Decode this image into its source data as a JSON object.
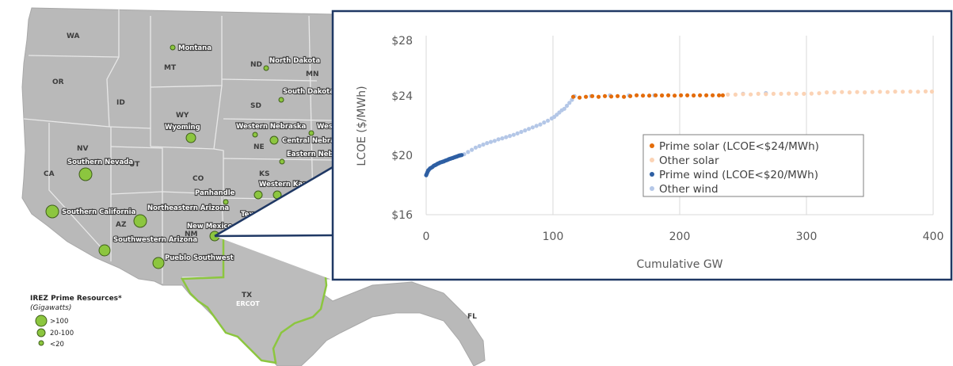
{
  "map": {
    "states": [
      {
        "id": "WA",
        "label": "WA"
      },
      {
        "id": "OR",
        "label": "OR"
      },
      {
        "id": "ID",
        "label": "ID"
      },
      {
        "id": "MT",
        "label": "MT"
      },
      {
        "id": "WY",
        "label": "WY"
      },
      {
        "id": "NV",
        "label": "NV"
      },
      {
        "id": "UT",
        "label": "UT"
      },
      {
        "id": "CA",
        "label": "CA"
      },
      {
        "id": "CO",
        "label": "CO"
      },
      {
        "id": "AZ",
        "label": "AZ"
      },
      {
        "id": "NM",
        "label": "NM"
      },
      {
        "id": "ND",
        "label": "ND"
      },
      {
        "id": "SD",
        "label": "SD"
      },
      {
        "id": "NE",
        "label": "NE"
      },
      {
        "id": "KS",
        "label": "KS"
      },
      {
        "id": "MN",
        "label": "MN"
      },
      {
        "id": "TX",
        "label": "TX"
      },
      {
        "id": "ERCOT",
        "label": "ERCOT"
      },
      {
        "id": "FL",
        "label": "FL"
      }
    ],
    "regions": [
      {
        "id": "montana",
        "label": "Montana",
        "size": "small"
      },
      {
        "id": "north-dakota",
        "label": "North Dakota",
        "size": "small"
      },
      {
        "id": "south-dakota",
        "label": "South Dakota",
        "size": "small"
      },
      {
        "id": "wyoming",
        "label": "Wyoming",
        "size": "medium"
      },
      {
        "id": "western-nebraska",
        "label": "Western Nebraska",
        "size": "small"
      },
      {
        "id": "central-nebraska",
        "label": "Central Nebraska",
        "size": "medium"
      },
      {
        "id": "eastern-nebraska",
        "label": "Eastern Nebra",
        "size": "small"
      },
      {
        "id": "west",
        "label": "Wes",
        "size": "small"
      },
      {
        "id": "southern-nevada",
        "label": "Southern Nevada",
        "size": "large"
      },
      {
        "id": "panhandle",
        "label": "Panhandle",
        "size": "small"
      },
      {
        "id": "western-kansas",
        "label": "Western Kansas",
        "size": "medium"
      },
      {
        "id": "southern-california",
        "label": "Southern California",
        "size": "large"
      },
      {
        "id": "northeastern-arizona",
        "label": "Northeastern Arizona",
        "size": "large"
      },
      {
        "id": "new-mexico",
        "label": "New Mexico",
        "size": "medium"
      },
      {
        "id": "southwestern-arizona",
        "label": "Southwestern Arizona",
        "size": "medium"
      },
      {
        "id": "pueblo-southwest",
        "label": "Pueblo Southwest",
        "size": "medium"
      },
      {
        "id": "tex",
        "label": "Tex",
        "size": "small"
      }
    ],
    "legend": {
      "title": "IREZ Prime Resources*",
      "subtitle": "(Gigawatts)",
      "items": [
        {
          "label": ">100",
          "size": "large"
        },
        {
          "label": "20-100",
          "size": "medium"
        },
        {
          "label": "<20",
          "size": "small"
        }
      ]
    },
    "colors": {
      "land": "#b9b9b9",
      "border": "#e8e8e8",
      "bubble": "#8cc63f",
      "bubble_edge": "#3f5f1a",
      "ercot": "#8cc63f",
      "callout": "#1f3864"
    }
  },
  "chart_data": {
    "type": "scatter",
    "xlabel": "Cumulative GW",
    "ylabel": "LCOE ($/MWh)",
    "xlim": [
      0,
      400
    ],
    "ylim": [
      16,
      28
    ],
    "x_ticks": [
      "0",
      "100",
      "200",
      "300",
      "400"
    ],
    "y_ticks": [
      "$16",
      "$20",
      "$24",
      "$28"
    ],
    "grid": "vertical",
    "legend_position": "center-right",
    "series": [
      {
        "name": "Prime solar (LCOE<$24/MWh)",
        "color": "#e46c0a",
        "x": [
          116,
          121,
          126,
          131,
          136,
          141,
          146,
          151,
          156,
          161,
          166,
          171,
          176,
          181,
          186,
          191,
          196,
          201,
          206,
          211,
          216,
          221,
          226,
          231,
          234
        ],
        "y": [
          23.9,
          23.85,
          23.9,
          23.95,
          23.9,
          23.95,
          23.92,
          23.95,
          23.9,
          23.95,
          24.0,
          23.98,
          23.98,
          24.0,
          23.99,
          24.0,
          23.98,
          24.0,
          24.0,
          23.99,
          24.0,
          24.0,
          24.0,
          24.0,
          24.0
        ]
      },
      {
        "name": "Other solar",
        "color": "#fbd3b5",
        "x": [
          238,
          244,
          250,
          256,
          262,
          268,
          274,
          280,
          286,
          292,
          298,
          304,
          310,
          316,
          322,
          328,
          334,
          340,
          346,
          352,
          358,
          364,
          370,
          376,
          382,
          388,
          394,
          399
        ],
        "y": [
          24.05,
          24.05,
          24.08,
          24.06,
          24.1,
          24.08,
          24.1,
          24.1,
          24.12,
          24.1,
          24.1,
          24.12,
          24.14,
          24.2,
          24.2,
          24.22,
          24.2,
          24.22,
          24.2,
          24.22,
          24.24,
          24.22,
          24.25,
          24.24,
          24.25,
          24.24,
          24.26,
          24.25
        ]
      },
      {
        "name": "Prime wind (LCOE<$20/MWh)",
        "color": "#2e5fa3",
        "x": [
          0,
          0.5,
          1,
          1.5,
          2,
          3,
          4,
          5,
          6,
          7,
          8,
          9,
          10,
          11,
          12,
          13,
          14,
          15,
          16,
          17,
          18,
          19,
          20,
          21,
          22,
          23,
          24,
          25,
          26,
          27,
          28
        ],
        "y": [
          18.65,
          18.75,
          18.85,
          18.95,
          19.0,
          19.1,
          19.15,
          19.2,
          19.28,
          19.32,
          19.36,
          19.42,
          19.45,
          19.5,
          19.52,
          19.55,
          19.58,
          19.62,
          19.65,
          19.68,
          19.72,
          19.75,
          19.78,
          19.8,
          19.84,
          19.87,
          19.9,
          19.93,
          19.96,
          19.98,
          20.0
        ]
      },
      {
        "name": "Other wind",
        "color": "#b4c7e7",
        "x": [
          30,
          33,
          36,
          39,
          42,
          45,
          48,
          51,
          54,
          57,
          60,
          63,
          66,
          69,
          72,
          75,
          78,
          81,
          84,
          87,
          90,
          93,
          96,
          99,
          101,
          103,
          105,
          107,
          109,
          111,
          113,
          115,
          117,
          130,
          145,
          160,
          180,
          250,
          268
        ],
        "y": [
          20.05,
          20.2,
          20.35,
          20.5,
          20.6,
          20.7,
          20.8,
          20.88,
          20.95,
          21.05,
          21.12,
          21.2,
          21.28,
          21.35,
          21.45,
          21.55,
          21.65,
          21.75,
          21.85,
          21.95,
          22.05,
          22.18,
          22.3,
          22.45,
          22.55,
          22.7,
          22.85,
          23.0,
          23.1,
          23.3,
          23.5,
          23.7,
          23.95,
          23.95,
          24.0,
          24.0,
          24.0,
          24.1,
          24.15
        ]
      }
    ]
  }
}
